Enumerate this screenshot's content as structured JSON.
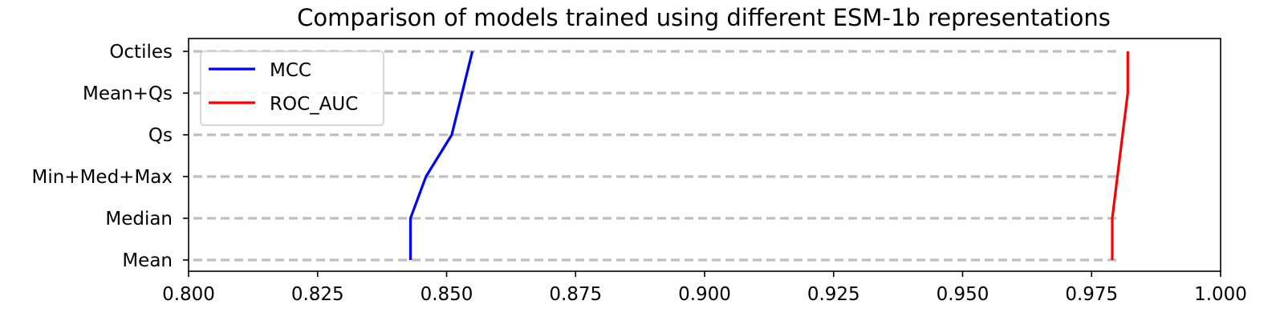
{
  "chart_data": {
    "type": "line",
    "title": "Comparison of models trained using different ESM-1b representations",
    "xlabel": "",
    "ylabel": "",
    "orientation": "horizontal-values",
    "categories": [
      "Mean",
      "Median",
      "Min+Med+Max",
      "Qs",
      "Mean+Qs",
      "Octiles"
    ],
    "xlim": [
      0.8,
      1.0
    ],
    "xticks": [
      "0.800",
      "0.825",
      "0.850",
      "0.875",
      "0.900",
      "0.925",
      "0.950",
      "0.975",
      "1.000"
    ],
    "xtick_values": [
      0.8,
      0.825,
      0.85,
      0.875,
      0.9,
      0.925,
      0.95,
      0.975,
      1.0
    ],
    "grid": "horizontal dashed lines at each category",
    "legend_position": "upper-left",
    "series": [
      {
        "name": "MCC",
        "color": "#0000ff",
        "values": [
          0.843,
          0.843,
          0.846,
          0.851,
          0.853,
          0.855
        ]
      },
      {
        "name": "ROC_AUC",
        "color": "#ff0000",
        "values": [
          0.979,
          0.979,
          0.98,
          0.981,
          0.982,
          0.982
        ]
      }
    ],
    "grid_color": "#bfbfbf"
  }
}
